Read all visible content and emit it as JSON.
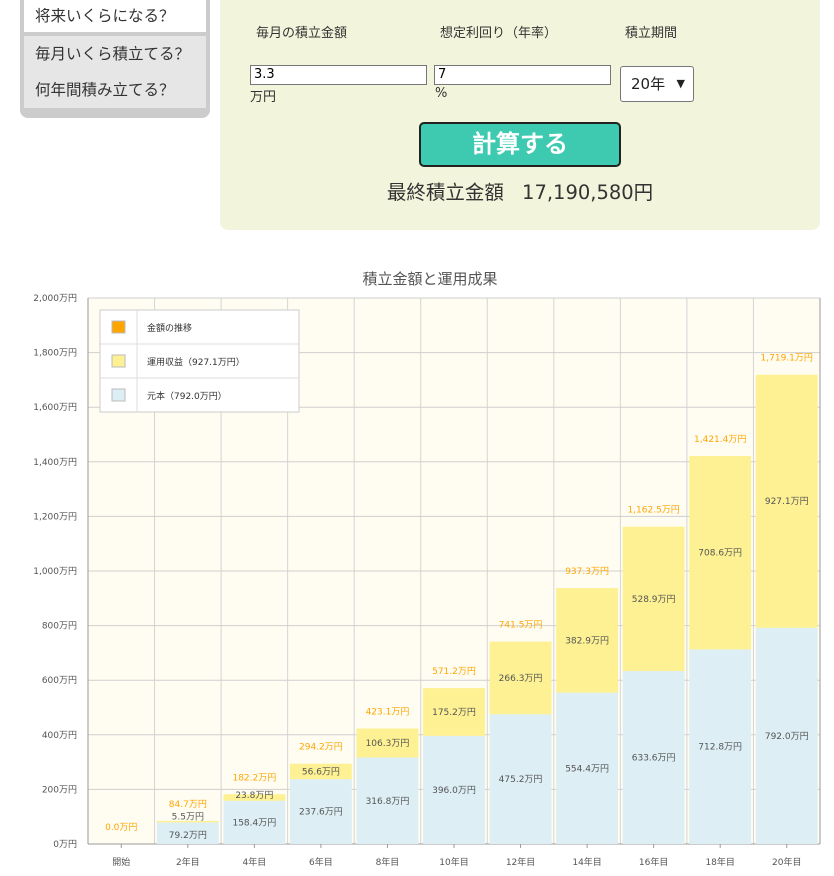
{
  "sidebar": {
    "items": [
      {
        "label": "将来いくらになる？"
      },
      {
        "label": "毎月いくら積立てる？"
      },
      {
        "label": "何年間積み立てる？"
      }
    ]
  },
  "calculator": {
    "monthly_label": "毎月の積立金額",
    "monthly_value": "3.3",
    "monthly_unit": "万円",
    "rate_label": "想定利回り（年率）",
    "rate_value": "7",
    "rate_unit": "%",
    "period_label": "積立期間",
    "period_value": "20年",
    "calculate_label": "計算する",
    "result_label": "最終積立金額",
    "result_value": "17,190,580円"
  },
  "chart_data": {
    "type": "bar",
    "stacked": true,
    "title": "積立金額と運用成果",
    "categories": [
      "開始",
      "2年目",
      "4年目",
      "6年目",
      "8年目",
      "10年目",
      "12年目",
      "14年目",
      "16年目",
      "18年目",
      "20年目"
    ],
    "series": [
      {
        "name": "元本（792.0万円）",
        "color": "#ddeef5",
        "values": [
          0,
          79.2,
          158.4,
          237.6,
          316.8,
          396.0,
          475.2,
          554.4,
          633.6,
          712.8,
          792.0
        ],
        "labels": [
          "",
          "79.2万円",
          "158.4万円",
          "237.6万円",
          "316.8万円",
          "396.0万円",
          "475.2万円",
          "554.4万円",
          "633.6万円",
          "712.8万円",
          "792.0万円"
        ]
      },
      {
        "name": "運用収益（927.1万円）",
        "color": "#fdf193",
        "values": [
          0,
          5.5,
          23.8,
          56.6,
          106.3,
          175.2,
          266.3,
          382.9,
          528.9,
          708.6,
          927.1
        ],
        "labels": [
          "",
          "5.5万円",
          "23.8万円",
          "56.6万円",
          "106.3万円",
          "175.2万円",
          "266.3万円",
          "382.9万円",
          "528.9万円",
          "708.6万円",
          "927.1万円"
        ]
      }
    ],
    "totals": {
      "name": "金額の推移",
      "color": "#ffa500",
      "values": [
        0.0,
        84.7,
        182.2,
        294.2,
        423.1,
        571.2,
        741.5,
        937.3,
        1162.5,
        1421.4,
        1719.1
      ],
      "labels": [
        "0.0万円",
        "84.7万円",
        "182.2万円",
        "294.2万円",
        "423.1万円",
        "571.2万円",
        "741.5万円",
        "937.3万円",
        "1,162.5万円",
        "1,421.4万円",
        "1,719.1万円"
      ]
    },
    "ylim": [
      0,
      2000
    ],
    "yticks": [
      0,
      200,
      400,
      600,
      800,
      1000,
      1200,
      1400,
      1600,
      1800,
      2000
    ],
    "ytick_labels": [
      "0万円",
      "200万円",
      "400万円",
      "600万円",
      "800万円",
      "1,000万円",
      "1,200万円",
      "1,400万円",
      "1,600万円",
      "1,800万円",
      "2,000万円"
    ],
    "grid": true,
    "legend_position": "top-left"
  }
}
